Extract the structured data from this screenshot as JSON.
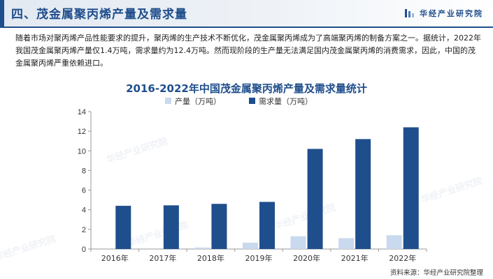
{
  "header": {
    "title": "四、茂金属聚丙烯产量及需求量",
    "brand": "华经产业研究院"
  },
  "intro_text": "随着市场对聚丙烯产品性能要求的提升，聚丙烯的生产技术不断优化，茂金属聚丙烯成为了高端聚丙烯的制备方案之一。据统计，2022年我国茂金属聚丙烯产量仅1.4万吨，需求量约为12.4万吨。然而现阶段的生产量无法满足国内茂金属聚丙烯的消费需求，因此，中国的茂金属聚丙烯严重依赖进口。",
  "watermark": "华经产业研究院",
  "source": "资料来源：华经产业研究院整理",
  "colors": {
    "accent": "#1f4e8c",
    "production": "#c9d9ee",
    "demand": "#1f4e8c"
  },
  "chart_data": {
    "type": "bar",
    "title": "2016-2022年中国茂金属聚丙烯产量及需求量统计",
    "categories": [
      "2016年",
      "2017年",
      "2018年",
      "2019年",
      "2020年",
      "2021年",
      "2022年"
    ],
    "series": [
      {
        "name": "产量（万吨）",
        "values": [
          0,
          0,
          0.15,
          0.65,
          1.3,
          1.1,
          1.4
        ]
      },
      {
        "name": "需求量（万吨）",
        "values": [
          4.4,
          4.45,
          4.6,
          4.8,
          10.2,
          11.2,
          12.4
        ]
      }
    ],
    "yticks": [
      0,
      2,
      4,
      6,
      8,
      10,
      12,
      14
    ],
    "ylim": [
      0,
      14
    ],
    "xlabel": "",
    "ylabel": "",
    "legend": "top-center",
    "grid": false
  }
}
